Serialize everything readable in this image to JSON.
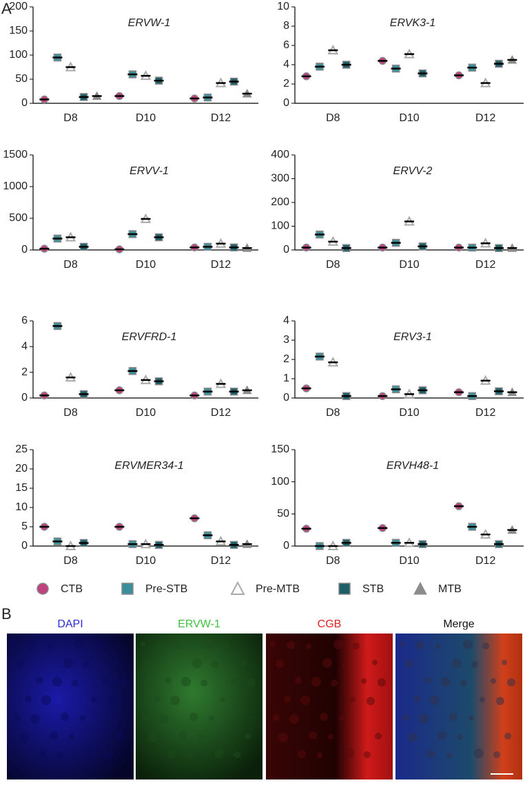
{
  "panel_labels": [
    "A",
    "B"
  ],
  "chart_data": [
    {
      "type": "dot",
      "title": "ERVW-1",
      "categories": [
        "D8",
        "D10",
        "D12"
      ],
      "ylim": [
        0,
        200
      ],
      "yticks": [
        0,
        50,
        100,
        150,
        200
      ],
      "series": [
        {
          "name": "CTB",
          "color": "#c0417f",
          "marker": "circle",
          "values": [
            8,
            15,
            10
          ]
        },
        {
          "name": "Pre-STB",
          "color": "#3b8f9b",
          "marker": "square",
          "values": [
            95,
            60,
            12
          ]
        },
        {
          "name": "Pre-MTB",
          "color": "#d9d9d9",
          "marker": "triangle-open",
          "values": [
            75,
            57,
            42
          ]
        },
        {
          "name": "STB",
          "color": "#1d5e69",
          "marker": "square",
          "values": [
            13,
            47,
            45
          ]
        },
        {
          "name": "MTB",
          "color": "#8c8c8c",
          "marker": "triangle",
          "values": [
            15,
            null,
            20
          ]
        }
      ]
    },
    {
      "type": "dot",
      "title": "ERVK3-1",
      "categories": [
        "D8",
        "D10",
        "D12"
      ],
      "ylim": [
        0,
        10
      ],
      "yticks": [
        0,
        2,
        4,
        6,
        8,
        10
      ],
      "series": [
        {
          "name": "CTB",
          "color": "#c0417f",
          "marker": "circle",
          "values": [
            2.8,
            4.4,
            2.9
          ]
        },
        {
          "name": "Pre-STB",
          "color": "#3b8f9b",
          "marker": "square",
          "values": [
            3.8,
            3.6,
            3.7
          ]
        },
        {
          "name": "Pre-MTB",
          "color": "#d9d9d9",
          "marker": "triangle-open",
          "values": [
            5.5,
            5.1,
            2.1
          ]
        },
        {
          "name": "STB",
          "color": "#1d5e69",
          "marker": "square",
          "values": [
            4.0,
            3.1,
            4.1
          ]
        },
        {
          "name": "MTB",
          "color": "#8c8c8c",
          "marker": "triangle",
          "values": [
            null,
            null,
            4.5
          ]
        }
      ]
    },
    {
      "type": "dot",
      "title": "ERVV-1",
      "categories": [
        "D8",
        "D10",
        "D12"
      ],
      "ylim": [
        0,
        1500
      ],
      "yticks": [
        0,
        500,
        1000,
        1500
      ],
      "series": [
        {
          "name": "CTB",
          "color": "#c0417f",
          "marker": "circle",
          "values": [
            20,
            10,
            40
          ]
        },
        {
          "name": "Pre-STB",
          "color": "#3b8f9b",
          "marker": "square",
          "values": [
            180,
            250,
            50
          ]
        },
        {
          "name": "Pre-MTB",
          "color": "#d9d9d9",
          "marker": "triangle-open",
          "values": [
            200,
            490,
            100
          ]
        },
        {
          "name": "STB",
          "color": "#1d5e69",
          "marker": "square",
          "values": [
            50,
            200,
            40
          ]
        },
        {
          "name": "MTB",
          "color": "#8c8c8c",
          "marker": "triangle",
          "values": [
            null,
            null,
            30
          ]
        }
      ]
    },
    {
      "type": "dot",
      "title": "ERVV-2",
      "categories": [
        "D8",
        "D10",
        "D12"
      ],
      "ylim": [
        0,
        400
      ],
      "yticks": [
        0,
        100,
        200,
        300,
        400
      ],
      "series": [
        {
          "name": "CTB",
          "color": "#c0417f",
          "marker": "circle",
          "values": [
            10,
            10,
            10
          ]
        },
        {
          "name": "Pre-STB",
          "color": "#3b8f9b",
          "marker": "square",
          "values": [
            65,
            30,
            10
          ]
        },
        {
          "name": "Pre-MTB",
          "color": "#d9d9d9",
          "marker": "triangle-open",
          "values": [
            35,
            120,
            28
          ]
        },
        {
          "name": "STB",
          "color": "#1d5e69",
          "marker": "square",
          "values": [
            8,
            15,
            8
          ]
        },
        {
          "name": "MTB",
          "color": "#8c8c8c",
          "marker": "triangle",
          "values": [
            null,
            null,
            8
          ]
        }
      ]
    },
    {
      "type": "dot",
      "title": "ERVFRD-1",
      "categories": [
        "D8",
        "D10",
        "D12"
      ],
      "ylim": [
        0,
        6
      ],
      "yticks": [
        0,
        2,
        4,
        6
      ],
      "series": [
        {
          "name": "CTB",
          "color": "#c0417f",
          "marker": "circle",
          "values": [
            0.2,
            0.6,
            0.2
          ]
        },
        {
          "name": "Pre-STB",
          "color": "#3b8f9b",
          "marker": "square",
          "values": [
            5.6,
            2.1,
            0.5
          ]
        },
        {
          "name": "Pre-MTB",
          "color": "#d9d9d9",
          "marker": "triangle-open",
          "values": [
            1.6,
            1.4,
            1.1
          ]
        },
        {
          "name": "STB",
          "color": "#1d5e69",
          "marker": "square",
          "values": [
            0.3,
            1.3,
            0.5
          ]
        },
        {
          "name": "MTB",
          "color": "#8c8c8c",
          "marker": "triangle",
          "values": [
            null,
            null,
            0.6
          ]
        }
      ]
    },
    {
      "type": "dot",
      "title": "ERV3-1",
      "categories": [
        "D8",
        "D10",
        "D12"
      ],
      "ylim": [
        0,
        4
      ],
      "yticks": [
        0,
        1,
        2,
        3,
        4
      ],
      "series": [
        {
          "name": "CTB",
          "color": "#c0417f",
          "marker": "circle",
          "values": [
            0.5,
            0.1,
            0.3
          ]
        },
        {
          "name": "Pre-STB",
          "color": "#3b8f9b",
          "marker": "square",
          "values": [
            2.15,
            0.45,
            0.1
          ]
        },
        {
          "name": "Pre-MTB",
          "color": "#d9d9d9",
          "marker": "triangle-open",
          "values": [
            1.85,
            0.2,
            0.9
          ]
        },
        {
          "name": "STB",
          "color": "#1d5e69",
          "marker": "square",
          "values": [
            0.1,
            0.4,
            0.35
          ]
        },
        {
          "name": "MTB",
          "color": "#8c8c8c",
          "marker": "triangle",
          "values": [
            null,
            null,
            0.3
          ]
        }
      ]
    },
    {
      "type": "dot",
      "title": "ERVMER34-1",
      "categories": [
        "D8",
        "D10",
        "D12"
      ],
      "ylim": [
        0,
        25
      ],
      "yticks": [
        0,
        5,
        10,
        15,
        20,
        25
      ],
      "series": [
        {
          "name": "CTB",
          "color": "#c0417f",
          "marker": "circle",
          "values": [
            5,
            5,
            7.2
          ]
        },
        {
          "name": "Pre-STB",
          "color": "#3b8f9b",
          "marker": "square",
          "values": [
            1.2,
            0.5,
            2.8
          ]
        },
        {
          "name": "Pre-MTB",
          "color": "#d9d9d9",
          "marker": "triangle-open",
          "values": [
            0,
            0.5,
            1.2
          ]
        },
        {
          "name": "STB",
          "color": "#1d5e69",
          "marker": "square",
          "values": [
            0.8,
            0.3,
            0.3
          ]
        },
        {
          "name": "MTB",
          "color": "#8c8c8c",
          "marker": "triangle",
          "values": [
            null,
            null,
            0.5
          ]
        }
      ]
    },
    {
      "type": "dot",
      "title": "ERVH48-1",
      "categories": [
        "D8",
        "D10",
        "D12"
      ],
      "ylim": [
        0,
        150
      ],
      "yticks": [
        0,
        50,
        100,
        150
      ],
      "series": [
        {
          "name": "CTB",
          "color": "#c0417f",
          "marker": "circle",
          "values": [
            27,
            28,
            62
          ]
        },
        {
          "name": "Pre-STB",
          "color": "#3b8f9b",
          "marker": "square",
          "values": [
            0,
            5,
            30
          ]
        },
        {
          "name": "Pre-MTB",
          "color": "#d9d9d9",
          "marker": "triangle-open",
          "values": [
            0,
            5,
            18
          ]
        },
        {
          "name": "STB",
          "color": "#1d5e69",
          "marker": "square",
          "values": [
            5,
            3,
            3
          ]
        },
        {
          "name": "MTB",
          "color": "#8c8c8c",
          "marker": "triangle",
          "values": [
            null,
            null,
            25
          ]
        }
      ]
    }
  ],
  "images": [
    {
      "label": "DAPI",
      "color": "#2a2ad0",
      "tint": "#0a0a5a"
    },
    {
      "label": "ERVW-1",
      "color": "#3fbf3f",
      "tint": "#1c4a1c"
    },
    {
      "label": "CGB",
      "color": "#e02020",
      "tint": "#5a0a0a"
    },
    {
      "label": "Merge",
      "color": "#111111",
      "tint": "#30304a"
    }
  ]
}
